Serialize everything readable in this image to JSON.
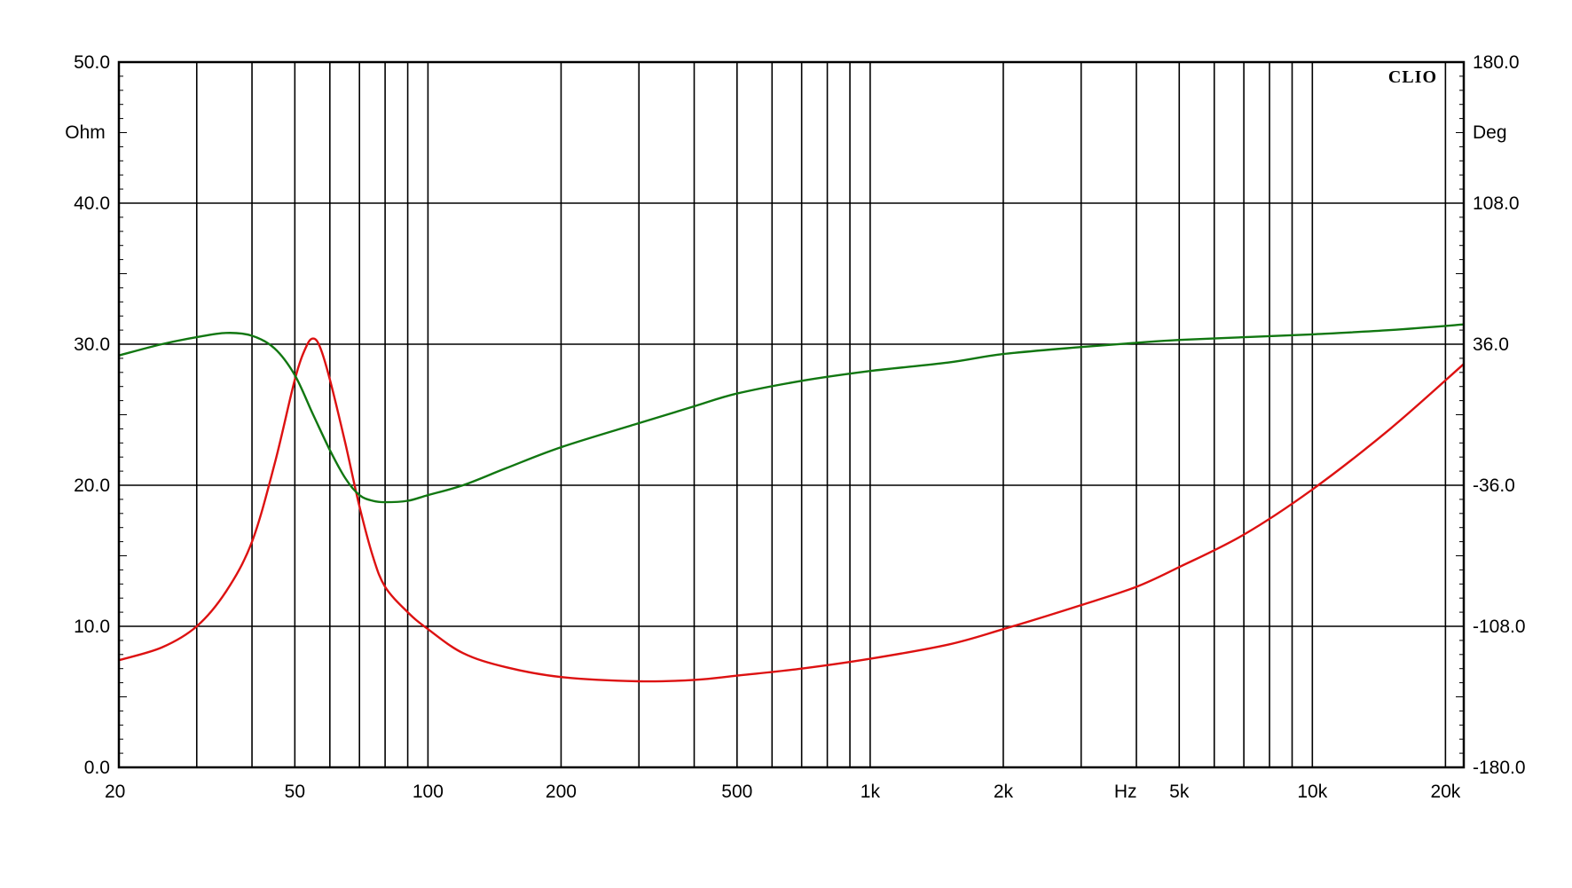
{
  "chart_data": {
    "type": "line",
    "brand": "CLIO",
    "x_scale": "log",
    "xlim": [
      20,
      22000
    ],
    "x_ticks": [
      {
        "value": 20,
        "label": "20"
      },
      {
        "value": 50,
        "label": "50"
      },
      {
        "value": 100,
        "label": "100"
      },
      {
        "value": 200,
        "label": "200"
      },
      {
        "value": 500,
        "label": "500"
      },
      {
        "value": 1000,
        "label": "1k"
      },
      {
        "value": 2000,
        "label": "2k"
      },
      {
        "value": 5000,
        "label": "5k"
      },
      {
        "value": 10000,
        "label": "10k"
      },
      {
        "value": 20000,
        "label": "20k"
      }
    ],
    "xlabel": "Hz",
    "x_gridlines": [
      30,
      40,
      50,
      60,
      70,
      80,
      90,
      100,
      200,
      300,
      400,
      500,
      600,
      700,
      800,
      900,
      1000,
      2000,
      3000,
      4000,
      5000,
      6000,
      7000,
      8000,
      9000,
      10000,
      20000
    ],
    "y_left": {
      "unit": "Ohm",
      "range": [
        0,
        50
      ],
      "ticks": [
        "0.0",
        "10.0",
        "20.0",
        "30.0",
        "40.0",
        "50.0"
      ]
    },
    "y_right": {
      "unit": "Deg",
      "range": [
        -180,
        180
      ],
      "ticks": [
        "-180.0",
        "-108.0",
        "-36.0",
        "36.0",
        "108.0",
        "180.0"
      ]
    },
    "grid": true,
    "series": [
      {
        "axis": "left",
        "color": "#dd1111",
        "points": [
          [
            20,
            7.6
          ],
          [
            25,
            8.5
          ],
          [
            30,
            10.0
          ],
          [
            35,
            12.5
          ],
          [
            40,
            16.0
          ],
          [
            45,
            21.5
          ],
          [
            50,
            27.5
          ],
          [
            53,
            29.8
          ],
          [
            55,
            30.4
          ],
          [
            57,
            29.8
          ],
          [
            60,
            27.5
          ],
          [
            65,
            23.0
          ],
          [
            70,
            18.5
          ],
          [
            75,
            15.0
          ],
          [
            80,
            12.8
          ],
          [
            90,
            11.0
          ],
          [
            100,
            9.8
          ],
          [
            120,
            8.1
          ],
          [
            150,
            7.1
          ],
          [
            200,
            6.4
          ],
          [
            300,
            6.1
          ],
          [
            400,
            6.2
          ],
          [
            500,
            6.5
          ],
          [
            700,
            7.0
          ],
          [
            1000,
            7.7
          ],
          [
            1500,
            8.7
          ],
          [
            2000,
            9.8
          ],
          [
            3000,
            11.5
          ],
          [
            4000,
            12.8
          ],
          [
            5000,
            14.2
          ],
          [
            7000,
            16.5
          ],
          [
            10000,
            19.7
          ],
          [
            15000,
            24.0
          ],
          [
            22000,
            28.6
          ]
        ]
      },
      {
        "axis": "left",
        "color": "#117711",
        "points": [
          [
            20,
            29.2
          ],
          [
            25,
            30.0
          ],
          [
            30,
            30.5
          ],
          [
            35,
            30.8
          ],
          [
            40,
            30.6
          ],
          [
            45,
            29.7
          ],
          [
            50,
            27.8
          ],
          [
            55,
            25.0
          ],
          [
            60,
            22.5
          ],
          [
            65,
            20.5
          ],
          [
            70,
            19.3
          ],
          [
            75,
            18.9
          ],
          [
            80,
            18.8
          ],
          [
            90,
            18.9
          ],
          [
            100,
            19.3
          ],
          [
            120,
            20.0
          ],
          [
            150,
            21.2
          ],
          [
            200,
            22.7
          ],
          [
            300,
            24.4
          ],
          [
            400,
            25.6
          ],
          [
            500,
            26.5
          ],
          [
            700,
            27.4
          ],
          [
            1000,
            28.1
          ],
          [
            1500,
            28.7
          ],
          [
            2000,
            29.3
          ],
          [
            3000,
            29.8
          ],
          [
            4000,
            30.1
          ],
          [
            5000,
            30.3
          ],
          [
            7000,
            30.5
          ],
          [
            10000,
            30.7
          ],
          [
            15000,
            31.0
          ],
          [
            22000,
            31.4
          ]
        ]
      }
    ]
  }
}
